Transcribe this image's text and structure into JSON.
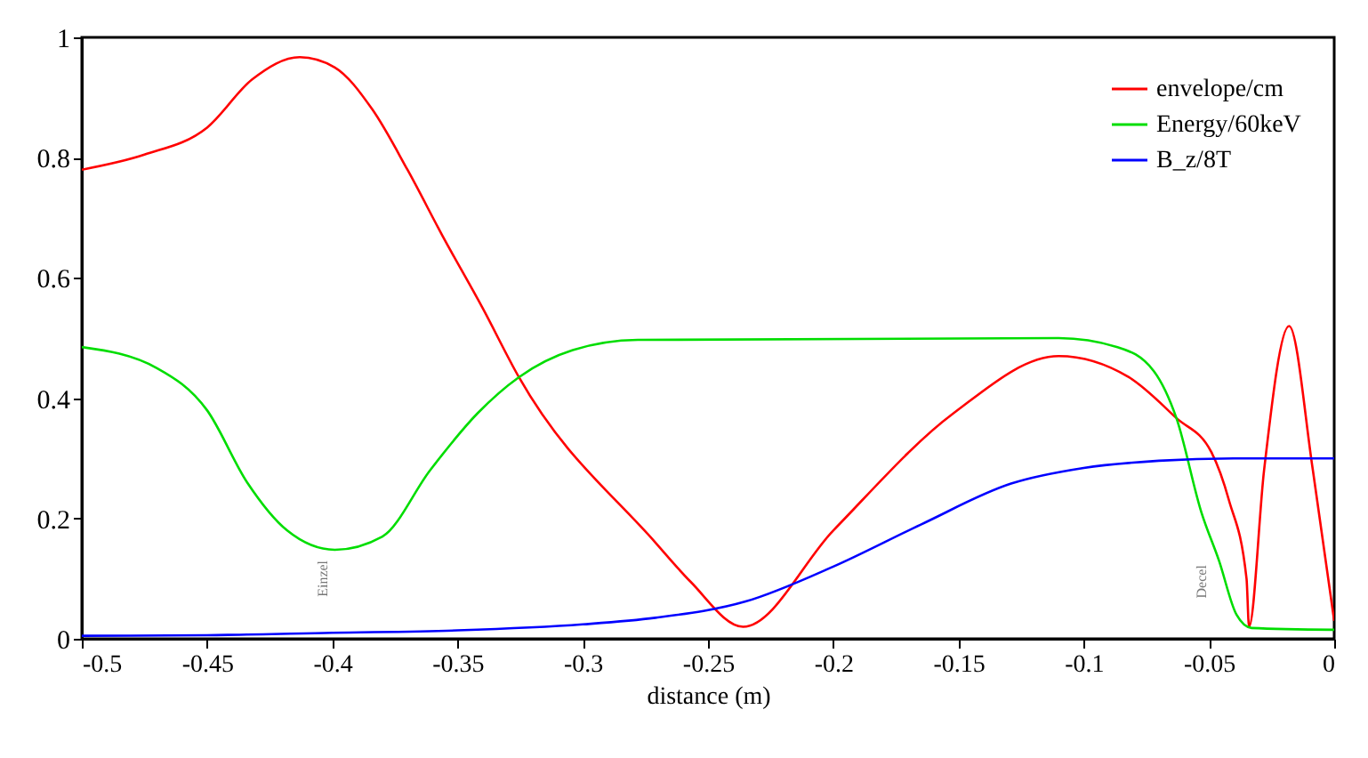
{
  "chart_data": {
    "type": "line",
    "xlabel": "distance (m)",
    "xlim": [
      -0.5,
      0
    ],
    "xticks": [
      -0.5,
      -0.45,
      -0.4,
      -0.35,
      -0.3,
      -0.25,
      -0.2,
      -0.15,
      -0.1,
      -0.05,
      0
    ],
    "ylim": [
      0,
      1
    ],
    "yticks": [
      0,
      0.2,
      0.4,
      0.6,
      0.8,
      1
    ],
    "grid": false,
    "legend": "top right",
    "line_style": "solid",
    "marker": "none",
    "annotations": [
      "Einzel",
      "Decel"
    ],
    "series": [
      {
        "name": "envelope/cm",
        "color": "#ff0000",
        "x": [
          -0.5,
          -0.475,
          -0.45,
          -0.432,
          -0.413,
          -0.399,
          -0.384,
          -0.37,
          -0.356,
          -0.34,
          -0.3255,
          -0.271,
          -0.257,
          -0.236,
          -0.2,
          -0.152,
          -0.11,
          -0.082,
          -0.063,
          -0.049,
          -0.042,
          -0.035,
          -0.034,
          -0.028,
          -0.018,
          -0.0085,
          0
        ],
        "values": [
          0.78,
          0.805,
          0.85,
          0.93,
          0.967,
          0.95,
          0.88,
          0.78,
          0.67,
          0.55,
          0.435,
          0.16,
          0.095,
          0.02,
          0.18,
          0.375,
          0.47,
          0.435,
          0.367,
          0.31,
          0.23,
          0.1,
          0.02,
          0.28,
          0.52,
          0.28,
          0.03
        ]
      },
      {
        "name": "Energy/60keV",
        "color": "#00dd00",
        "x": [
          -0.5,
          -0.47,
          -0.45,
          -0.434,
          -0.418,
          -0.399,
          -0.38,
          -0.361,
          -0.342,
          -0.3255,
          -0.304,
          -0.278,
          -0.11,
          -0.0865,
          -0.072,
          -0.063,
          -0.053,
          -0.046,
          -0.039,
          -0.033,
          0
        ],
        "values": [
          0.485,
          0.45,
          0.38,
          0.26,
          0.18,
          0.148,
          0.17,
          0.28,
          0.375,
          0.435,
          0.48,
          0.497,
          0.5,
          0.485,
          0.445,
          0.367,
          0.21,
          0.13,
          0.04,
          0.018,
          0.015
        ]
      },
      {
        "name": "B_z/8T",
        "color": "#0000ff",
        "x": [
          -0.5,
          -0.45,
          -0.4,
          -0.35,
          -0.3,
          -0.271,
          -0.235,
          -0.2,
          -0.165,
          -0.129,
          -0.1,
          -0.07,
          -0.04,
          0
        ],
        "values": [
          0.005,
          0.006,
          0.01,
          0.014,
          0.024,
          0.035,
          0.062,
          0.12,
          0.19,
          0.258,
          0.284,
          0.296,
          0.3,
          0.3
        ]
      }
    ]
  }
}
